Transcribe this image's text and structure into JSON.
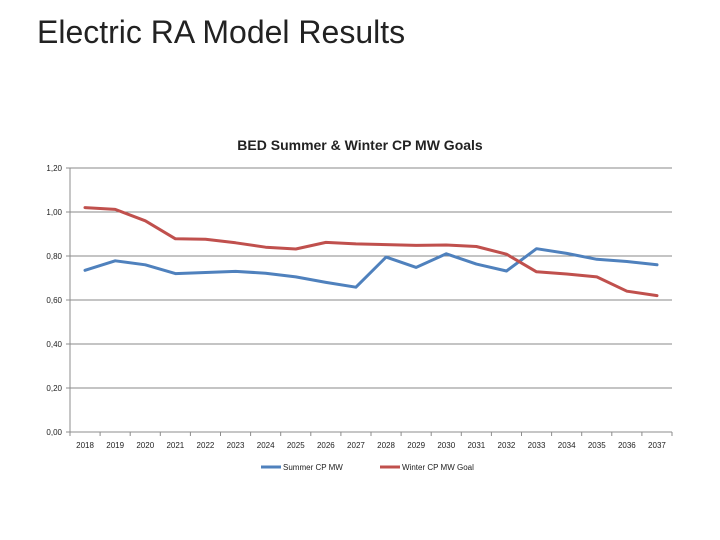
{
  "slide": {
    "title": "Electric RA Model Results"
  },
  "chart_data": {
    "type": "line",
    "title": "BED Summer & Winter CP MW Goals",
    "xlabel": "",
    "ylabel": "",
    "categories": [
      "2018",
      "2019",
      "2020",
      "2021",
      "2022",
      "2023",
      "2024",
      "2025",
      "2026",
      "2027",
      "2028",
      "2029",
      "2030",
      "2031",
      "2032",
      "2033",
      "2034",
      "2035",
      "2036",
      "2037"
    ],
    "ylim": [
      0,
      1.2
    ],
    "yticks": [
      "0,00",
      "0,20",
      "0,40",
      "0,60",
      "0,80",
      "1,00",
      "1,20"
    ],
    "grid": true,
    "legend_position": "bottom",
    "series": [
      {
        "name": "Summer CP MW",
        "color": "#4f81bd",
        "values": [
          0.735,
          0.778,
          0.76,
          0.72,
          0.725,
          0.73,
          0.722,
          0.705,
          0.68,
          0.658,
          0.795,
          0.748,
          0.81,
          0.763,
          0.732,
          0.833,
          0.812,
          0.785,
          0.775,
          0.76
        ]
      },
      {
        "name": "Winter CP MW Goal",
        "color": "#c0504d",
        "values": [
          1.02,
          1.012,
          0.96,
          0.878,
          0.876,
          0.86,
          0.84,
          0.832,
          0.862,
          0.855,
          0.852,
          0.848,
          0.85,
          0.843,
          0.808,
          0.728,
          0.718,
          0.705,
          0.64,
          0.62
        ]
      }
    ]
  }
}
